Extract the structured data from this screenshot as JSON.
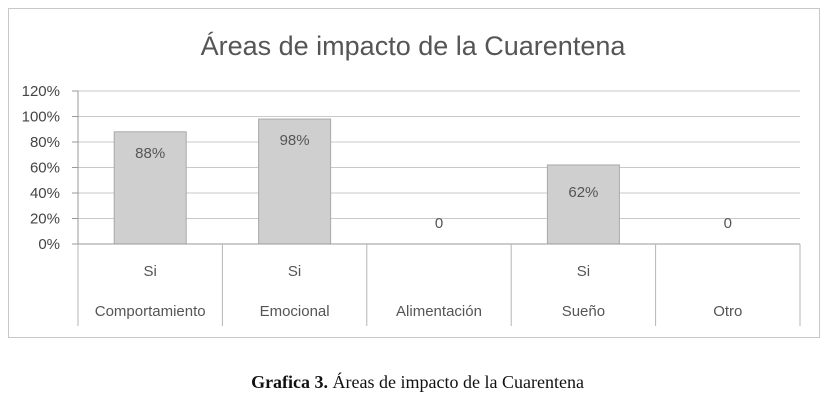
{
  "chart_data": {
    "type": "bar",
    "title": "Áreas de impacto de la Cuarentena",
    "categories": [
      {
        "top": "Si",
        "bottom": "Comportamiento"
      },
      {
        "top": "Si",
        "bottom": "Emocional"
      },
      {
        "top": "",
        "bottom": "Alimentación"
      },
      {
        "top": "Si",
        "bottom": "Sueño"
      },
      {
        "top": "",
        "bottom": "Otro"
      }
    ],
    "values": [
      88,
      98,
      0,
      62,
      0
    ],
    "data_labels": [
      "88%",
      "98%",
      "0",
      "62%",
      "0"
    ],
    "yticks": [
      "0%",
      "20%",
      "40%",
      "60%",
      "80%",
      "100%",
      "120%"
    ],
    "ylim": [
      0,
      120
    ],
    "grid": true,
    "legend": "none",
    "bar_color": "#cfcfcf",
    "bar_border": "#a9a9a9",
    "grid_color": "#c9c9c9"
  },
  "caption": {
    "label": "Grafica 3.",
    "text": "Áreas de impacto de la Cuarentena"
  }
}
